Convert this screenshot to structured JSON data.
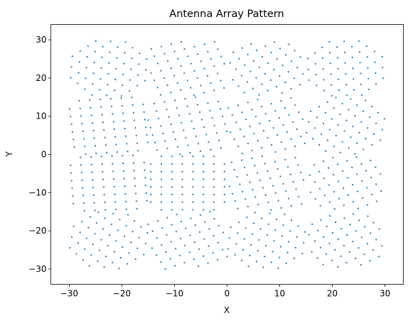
{
  "chart_data": {
    "type": "scatter",
    "title": "Antenna Array Pattern",
    "xlabel": "X",
    "ylabel": "Y",
    "xlim": [
      -33.5,
      33.5
    ],
    "ylim": [
      -34,
      34
    ],
    "xticks": [
      -30,
      -20,
      -10,
      0,
      10,
      20,
      30
    ],
    "yticks": [
      -30,
      -20,
      -10,
      0,
      10,
      20,
      30
    ],
    "grid": false,
    "legend": "none",
    "marker_color": "#1f77b4",
    "series": [
      {
        "description_free": true,
        "subarrays": [
          {
            "center": [
              -22.5,
              22.5
            ],
            "rotation_deg": 42,
            "pitch": 2.0,
            "radius": 9.0
          },
          {
            "center": [
              -7.5,
              22.5
            ],
            "rotation_deg": 18,
            "pitch": 2.0,
            "radius": 9.0
          },
          {
            "center": [
              7.5,
              22.5
            ],
            "rotation_deg": 33,
            "pitch": 2.0,
            "radius": 9.0
          },
          {
            "center": [
              22.5,
              22.5
            ],
            "rotation_deg": 47,
            "pitch": 2.0,
            "radius": 9.0
          },
          {
            "center": [
              -22.5,
              7.5
            ],
            "rotation_deg": 5,
            "pitch": 2.0,
            "radius": 9.0
          },
          {
            "center": [
              -7.5,
              7.5
            ],
            "rotation_deg": 12,
            "pitch": 2.0,
            "radius": 9.0
          },
          {
            "center": [
              7.5,
              7.5
            ],
            "rotation_deg": 22,
            "pitch": 2.0,
            "radius": 9.0
          },
          {
            "center": [
              22.5,
              7.5
            ],
            "rotation_deg": 37,
            "pitch": 2.0,
            "radius": 9.0
          },
          {
            "center": [
              -22.5,
              -7.5
            ],
            "rotation_deg": 3,
            "pitch": 2.0,
            "radius": 9.0
          },
          {
            "center": [
              -7.5,
              -7.5
            ],
            "rotation_deg": 0,
            "pitch": 2.0,
            "radius": 9.0
          },
          {
            "center": [
              7.5,
              -7.5
            ],
            "rotation_deg": 15,
            "pitch": 2.0,
            "radius": 9.0
          },
          {
            "center": [
              22.5,
              -7.5
            ],
            "rotation_deg": 28,
            "pitch": 2.0,
            "radius": 9.0
          },
          {
            "center": [
              -22.5,
              -22.5
            ],
            "rotation_deg": 38,
            "pitch": 2.0,
            "radius": 9.0
          },
          {
            "center": [
              -7.5,
              -22.5
            ],
            "rotation_deg": 25,
            "pitch": 2.0,
            "radius": 9.0
          },
          {
            "center": [
              7.5,
              -22.5
            ],
            "rotation_deg": 40,
            "pitch": 2.0,
            "radius": 9.0
          },
          {
            "center": [
              22.5,
              -22.5
            ],
            "rotation_deg": 33,
            "pitch": 2.0,
            "radius": 9.0
          }
        ]
      }
    ]
  }
}
